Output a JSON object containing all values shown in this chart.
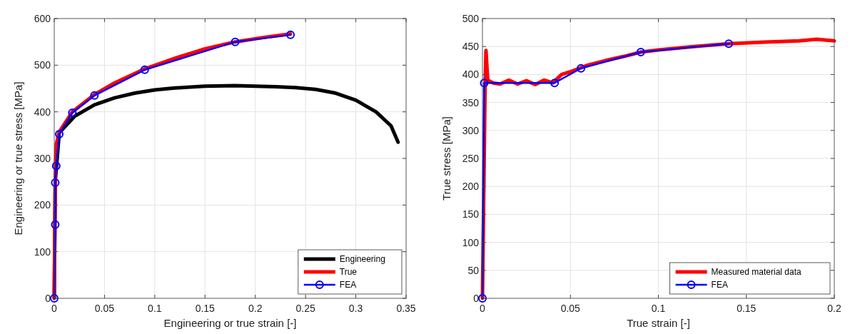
{
  "chart_data": [
    {
      "type": "line",
      "xlabel": "Engineering or true strain [-]",
      "ylabel": "Engineering or true stress [MPa]",
      "xlim": [
        0,
        0.35
      ],
      "ylim": [
        0,
        600
      ],
      "xticks": [
        0,
        0.05,
        0.1,
        0.15,
        0.2,
        0.25,
        0.3,
        {
          "value": 0.35,
          "label": "0.35"
        }
      ],
      "yticks": [
        0,
        100,
        200,
        300,
        400,
        500,
        600
      ],
      "grid": true,
      "legend": "bottom right",
      "series": [
        {
          "name": "Engineering",
          "color": "#000000",
          "marker": "none",
          "x": [
            0,
            0.001,
            0.005,
            0.02,
            0.04,
            0.06,
            0.08,
            0.1,
            0.12,
            0.15,
            0.18,
            0.2,
            0.22,
            0.24,
            0.26,
            0.28,
            0.3,
            0.32,
            0.335,
            0.342
          ],
          "values": [
            0,
            250,
            355,
            390,
            415,
            430,
            440,
            447,
            451,
            455,
            456,
            455,
            454,
            452,
            448,
            440,
            425,
            400,
            370,
            335
          ]
        },
        {
          "name": "True",
          "color": "#ff0000",
          "marker": "none",
          "x": [
            0,
            0.001,
            0.002,
            0.005,
            0.018,
            0.04,
            0.06,
            0.09,
            0.12,
            0.15,
            0.18,
            0.21,
            0.235
          ],
          "values": [
            0,
            250,
            330,
            357,
            400,
            437,
            462,
            492,
            515,
            535,
            550,
            560,
            567
          ]
        },
        {
          "name": "FEA",
          "color": "#0000ff",
          "marker": "circle",
          "x": [
            0,
            0.001,
            0.001,
            0.002,
            0.005,
            0.018,
            0.04,
            0.09,
            0.18,
            0.235
          ],
          "values": [
            0,
            158,
            248,
            284,
            352,
            398,
            435,
            490,
            550,
            565
          ]
        }
      ]
    },
    {
      "type": "line",
      "xlabel": "True strain [-]",
      "ylabel": "True stress [MPa]",
      "xlim": [
        0,
        0.2
      ],
      "ylim": [
        0,
        500
      ],
      "xticks": [
        0,
        0.05,
        0.1,
        0.15,
        0.2
      ],
      "yticks": [
        0,
        50,
        100,
        150,
        200,
        250,
        300,
        350,
        400,
        450,
        500
      ],
      "grid": true,
      "legend": "bottom right",
      "series": [
        {
          "name": "Measured material data",
          "color": "#ff0000",
          "marker": "none",
          "x": [
            0,
            0.0015,
            0.002,
            0.003,
            0.006,
            0.01,
            0.015,
            0.02,
            0.025,
            0.03,
            0.035,
            0.04,
            0.045,
            0.05,
            0.06,
            0.07,
            0.08,
            0.09,
            0.1,
            0.12,
            0.14,
            0.16,
            0.18,
            0.19,
            0.2
          ],
          "values": [
            0,
            380,
            443,
            390,
            385,
            383,
            390,
            383,
            389,
            382,
            390,
            385,
            400,
            405,
            417,
            425,
            432,
            440,
            444,
            450,
            455,
            458,
            460,
            463,
            460
          ]
        },
        {
          "name": "FEA",
          "color": "#0000ff",
          "marker": "circle",
          "x": [
            0,
            0.001,
            0.041,
            0.056,
            0.09,
            0.14
          ],
          "values": [
            0,
            385,
            385,
            411,
            440,
            455
          ]
        }
      ]
    }
  ]
}
